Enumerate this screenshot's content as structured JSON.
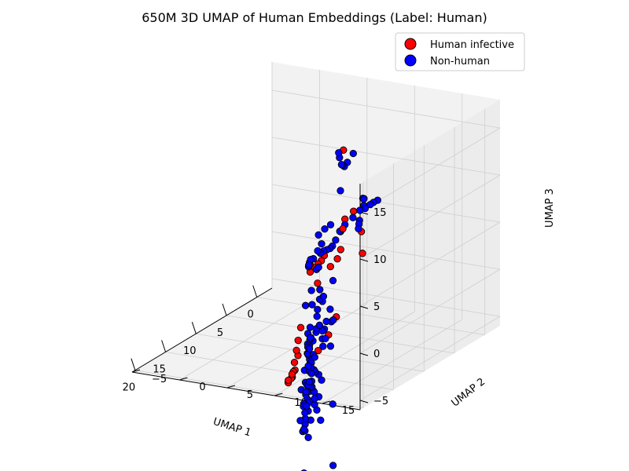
{
  "chart_data": {
    "type": "scatter",
    "title": "650M 3D UMAP of Human Embeddings (Label: Human)",
    "xlabel": "UMAP 1",
    "ylabel": "UMAP 2",
    "zlabel": "UMAP 3",
    "xlim": [
      -2.5,
      20.5
    ],
    "ylim": [
      -5,
      19
    ],
    "zlim": [
      -6,
      18
    ],
    "xticks": [
      "0",
      "5",
      "10",
      "15",
      "20"
    ],
    "yticks": [
      "−5",
      "0",
      "5",
      "10",
      "15"
    ],
    "zticks": [
      "−5",
      "0",
      "5",
      "10",
      "15"
    ],
    "grid": true,
    "legend_position": "top-right",
    "colors": {
      "Human infective": "#ff0000",
      "Non-human": "#0000ff",
      "edge": "#000000"
    },
    "series": [
      {
        "name": "Human infective",
        "points": [
          [
            0.0,
            6.0,
            2.8
          ],
          [
            7.0,
            8.6,
            14.6
          ],
          [
            4.4,
            8.0,
            7.0
          ],
          [
            5.2,
            7.6,
            6.4
          ],
          [
            5.6,
            7.4,
            5.2
          ],
          [
            6.2,
            7.8,
            3.6
          ],
          [
            6.9,
            7.9,
            2.9
          ],
          [
            8.2,
            8.0,
            2.6
          ],
          [
            8.9,
            7.8,
            4.0
          ],
          [
            9.7,
            8.0,
            3.8
          ],
          [
            10.1,
            7.9,
            3.6
          ],
          [
            10.4,
            7.8,
            3.3
          ],
          [
            10.9,
            7.6,
            3.0
          ],
          [
            11.7,
            8.1,
            4.2
          ],
          [
            12.1,
            8.3,
            4.6
          ],
          [
            8.4,
            5.0,
            -4.3
          ],
          [
            8.2,
            4.6,
            -5.8
          ],
          [
            8.0,
            4.3,
            -7.0
          ],
          [
            7.6,
            4.2,
            -7.7
          ],
          [
            7.4,
            3.7,
            -8.6
          ],
          [
            7.0,
            3.5,
            -9.6
          ],
          [
            6.8,
            3.2,
            -9.9
          ],
          [
            6.4,
            2.8,
            -10.4
          ],
          [
            6.2,
            2.7,
            -10.8
          ],
          [
            5.9,
            2.4,
            -11.1
          ],
          [
            5.6,
            1.9,
            -11.5
          ],
          [
            5.3,
            1.7,
            -11.9
          ],
          [
            5.0,
            1.5,
            -12.0
          ],
          [
            1.0,
            4.0,
            -6.2
          ],
          [
            1.5,
            3.5,
            -8.0
          ],
          [
            2.4,
            3.0,
            -9.4
          ],
          [
            3.4,
            2.8,
            -10.2
          ],
          [
            10.9,
            13.1,
            5.9
          ],
          [
            13.8,
            12.9,
            9.6
          ],
          [
            8.6,
            6.9,
            0.8
          ]
        ]
      },
      {
        "name": "Non-human",
        "points": [
          [
            2.0,
            9.0,
            7.4
          ],
          [
            3.0,
            9.2,
            7.6
          ],
          [
            4.0,
            9.5,
            7.8
          ],
          [
            5.0,
            9.6,
            7.8
          ],
          [
            6.0,
            9.7,
            8.0
          ],
          [
            7.0,
            9.6,
            7.6
          ],
          [
            8.0,
            9.4,
            7.2
          ],
          [
            9.0,
            9.5,
            6.9
          ],
          [
            10.0,
            9.7,
            6.4
          ],
          [
            11.0,
            10.0,
            6.2
          ],
          [
            12.0,
            10.4,
            6.4
          ],
          [
            13.0,
            10.7,
            6.7
          ],
          [
            14.0,
            11.0,
            7.0
          ],
          [
            15.0,
            11.3,
            7.2
          ],
          [
            16.0,
            11.2,
            7.0
          ],
          [
            16.6,
            11.1,
            6.5
          ],
          [
            17.1,
            11.4,
            6.6
          ],
          [
            17.5,
            11.7,
            7.0
          ],
          [
            17.7,
            12.0,
            7.7
          ],
          [
            17.0,
            12.3,
            8.4
          ],
          [
            16.4,
            12.0,
            9.8
          ],
          [
            15.7,
            12.2,
            10.2
          ],
          [
            15.2,
            12.5,
            10.5
          ],
          [
            0.5,
            6.6,
            6.6
          ],
          [
            1.3,
            7.0,
            7.0
          ],
          [
            1.8,
            7.4,
            7.2
          ],
          [
            2.4,
            7.8,
            6.8
          ],
          [
            0.3,
            6.0,
            4.1
          ],
          [
            0.7,
            6.2,
            3.9
          ],
          [
            1.1,
            6.4,
            3.6
          ],
          [
            9.6,
            11.3,
            15.7
          ],
          [
            10.1,
            11.0,
            14.9
          ],
          [
            10.9,
            11.2,
            14.8
          ],
          [
            11.5,
            11.4,
            15.2
          ],
          [
            12.0,
            11.6,
            15.5
          ],
          [
            12.8,
            11.9,
            16.6
          ],
          [
            13.4,
            12.2,
            17.4
          ],
          [
            14.2,
            12.9,
            13.8
          ],
          [
            18.4,
            13.6,
            9.9
          ],
          [
            20.3,
            14.5,
            8.3
          ],
          [
            20.4,
            14.7,
            6.0
          ],
          [
            17.7,
            13.3,
            -1.3
          ],
          [
            19.9,
            13.5,
            -3.3
          ],
          [
            14.8,
            9.5,
            -5.6
          ],
          [
            12.1,
            7.9,
            -9.5
          ],
          [
            11.5,
            7.3,
            -10.8
          ],
          [
            11.7,
            7.9,
            -11.4
          ],
          [
            12.8,
            8.3,
            -11.7
          ],
          [
            13.8,
            8.9,
            -10.6
          ],
          [
            14.5,
            9.2,
            -9.6
          ],
          [
            14.1,
            9.2,
            -8.2
          ],
          [
            13.0,
            8.6,
            -8.0
          ],
          [
            12.3,
            8.0,
            -8.1
          ],
          [
            11.2,
            7.5,
            -10.4
          ],
          [
            10.8,
            7.0,
            -13.3
          ],
          [
            11.3,
            7.2,
            -13.6
          ],
          [
            10.2,
            6.6,
            -14.3
          ],
          [
            10.8,
            6.6,
            -9.7
          ],
          [
            13.4,
            9.0,
            -4.6
          ],
          [
            14.3,
            9.7,
            -3.1
          ],
          [
            15.5,
            10.3,
            -1.3
          ],
          [
            15.9,
            10.8,
            -0.4
          ],
          [
            16.1,
            11.0,
            -1.4
          ],
          [
            17.6,
            12.0,
            -3.3
          ],
          [
            18.4,
            12.2,
            -3.3
          ],
          [
            16.9,
            11.9,
            -7.4
          ],
          [
            17.1,
            12.0,
            -6.6
          ],
          [
            16.7,
            11.5,
            -6.3
          ],
          [
            16.5,
            11.0,
            -6.3
          ],
          [
            15.8,
            10.6,
            -5.1
          ],
          [
            17.9,
            12.1,
            -0.5
          ],
          [
            17.0,
            11.9,
            -4.3
          ],
          [
            18.1,
            12.5,
            -0.7
          ],
          [
            17.3,
            11.6,
            -5.5
          ],
          [
            16.0,
            11.4,
            -5.0
          ],
          [
            14.3,
            10.0,
            -4.3
          ],
          [
            13.5,
            9.2,
            -5.0
          ],
          [
            13.5,
            9.0,
            -3.4
          ],
          [
            15.2,
            10.1,
            -3.6
          ],
          [
            15.5,
            10.7,
            -6.3
          ],
          [
            14.8,
            10.8,
            -9.6
          ],
          [
            14.1,
            10.0,
            -8.0
          ],
          [
            16.3,
            11.1,
            -6.5
          ],
          [
            17.7,
            11.9,
            -4.2
          ],
          [
            18.0,
            11.9,
            -1.5
          ],
          [
            12.0,
            9.7,
            1.2
          ],
          [
            11.5,
            8.6,
            -3.0
          ],
          [
            12.5,
            9.3,
            -2.1
          ],
          [
            15.8,
            11.4,
            5.8
          ],
          [
            12.9,
            9.6,
            -0.6
          ],
          [
            14.8,
            10.3,
            1.5
          ],
          [
            13.2,
            9.2,
            2.2
          ],
          [
            10.8,
            8.3,
            -0.9
          ],
          [
            9.8,
            8.6,
            -2.5
          ],
          [
            10.5,
            7.8,
            -11.2
          ],
          [
            9.7,
            6.7,
            -10.3
          ],
          [
            10.5,
            6.7,
            -13.0
          ],
          [
            6.4,
            6.0,
            -6.1
          ],
          [
            3.9,
            4.4,
            -6.5
          ],
          [
            2.0,
            4.0,
            -5.0
          ],
          [
            1.4,
            2.8,
            -4.6
          ],
          [
            0.6,
            2.5,
            -7.9
          ],
          [
            1.0,
            3.4,
            -9.4
          ],
          [
            1.8,
            4.0,
            -6.4
          ],
          [
            0.6,
            3.4,
            -2.6
          ],
          [
            12.9,
            11.3,
            -0.7
          ],
          [
            10.9,
            9.2,
            -3.8
          ],
          [
            13.7,
            10.3,
            -8.7
          ],
          [
            10.9,
            7.4,
            -14.6
          ],
          [
            12.0,
            9.4,
            -12.0
          ],
          [
            9.1,
            6.5,
            -13.6
          ],
          [
            11.5,
            7.8,
            -10.6
          ],
          [
            13.9,
            10.5,
            -1.0
          ],
          [
            14.2,
            10.6,
            -6.1
          ],
          [
            15.9,
            12.0,
            -5.8
          ],
          [
            16.8,
            11.7,
            -2.8
          ],
          [
            17.5,
            11.8,
            -0.9
          ],
          [
            19.3,
            12.9,
            -1.0
          ],
          [
            19.5,
            12.7,
            -7.1
          ],
          [
            19.2,
            13.0,
            -3.0
          ],
          [
            20.5,
            12.7,
            -8.2
          ],
          [
            20.4,
            13.3,
            -6.6
          ],
          [
            12.3,
            8.2,
            -5.0
          ],
          [
            10.2,
            6.5,
            -18.8
          ],
          [
            14.8,
            12.5,
            -15.2
          ],
          [
            17.5,
            12.3,
            -2.7
          ],
          [
            9.0,
            5.6,
            -15.0
          ],
          [
            12.6,
            8.2,
            0.2
          ],
          [
            15.0,
            12.6,
            -8.6
          ],
          [
            5.3,
            5.0,
            -2.5
          ]
        ]
      }
    ]
  }
}
